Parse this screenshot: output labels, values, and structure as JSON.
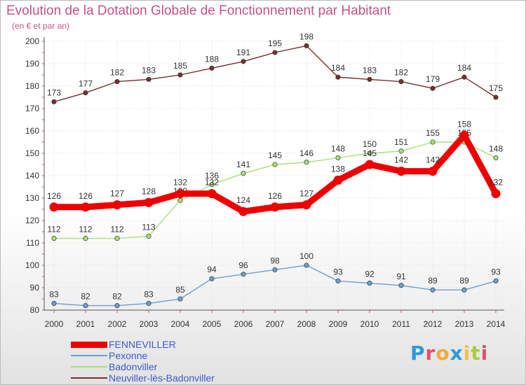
{
  "chart_data": {
    "type": "line",
    "title": "Evolution de la Dotation Globale de Fonctionnement par Habitant",
    "subtitle": "(en € et par an)",
    "xlabel": "",
    "ylabel": "",
    "ylim": [
      80,
      200
    ],
    "yticks": [
      80,
      90,
      100,
      110,
      120,
      130,
      140,
      150,
      160,
      170,
      180,
      190,
      200
    ],
    "x": [
      2000,
      2001,
      2002,
      2003,
      2004,
      2005,
      2006,
      2007,
      2008,
      2009,
      2010,
      2011,
      2012,
      2013,
      2014
    ],
    "grid": true,
    "legend_position": "bottom-left",
    "series": [
      {
        "name": "Neuviller-lès-Badonviller",
        "color": "#7a2e2e",
        "values": [
          173,
          177,
          182,
          183,
          185,
          188,
          191,
          195,
          198,
          184,
          183,
          182,
          179,
          184,
          175
        ]
      },
      {
        "name": "Badonviller",
        "color": "#a8e07a",
        "values": [
          112,
          112,
          112,
          113,
          129,
          136,
          141,
          145,
          146,
          148,
          150,
          151,
          155,
          155,
          148
        ]
      },
      {
        "name": "Pexonne",
        "color": "#6aa0d0",
        "values": [
          83,
          82,
          82,
          83,
          85,
          94,
          96,
          98,
          100,
          93,
          92,
          91,
          89,
          89,
          93
        ]
      },
      {
        "name": "FENNEVILLER",
        "color": "#ee0000",
        "values": [
          126,
          126,
          127,
          128,
          132,
          132,
          124,
          126,
          127,
          138,
          145,
          142,
          142,
          158,
          132
        ]
      }
    ]
  },
  "legend": {
    "items": [
      {
        "label": "FENNEVILLER",
        "color": "#ee0000"
      },
      {
        "label": "Pexonne",
        "color": "#6aa0d0"
      },
      {
        "label": "Badonviller",
        "color": "#a8e07a"
      },
      {
        "label": "Neuviller-lès-Badonviller",
        "color": "#7a2e2e"
      }
    ]
  },
  "logo": {
    "letters": [
      "P",
      "r",
      "o",
      "x",
      "i",
      "t",
      "i"
    ],
    "colors": [
      "#2e9ad8",
      "#e84d6a",
      "#f2a93b",
      "#2e9ad8",
      "#f2c43b",
      "#a6cf3c",
      "#e84d6a"
    ]
  }
}
